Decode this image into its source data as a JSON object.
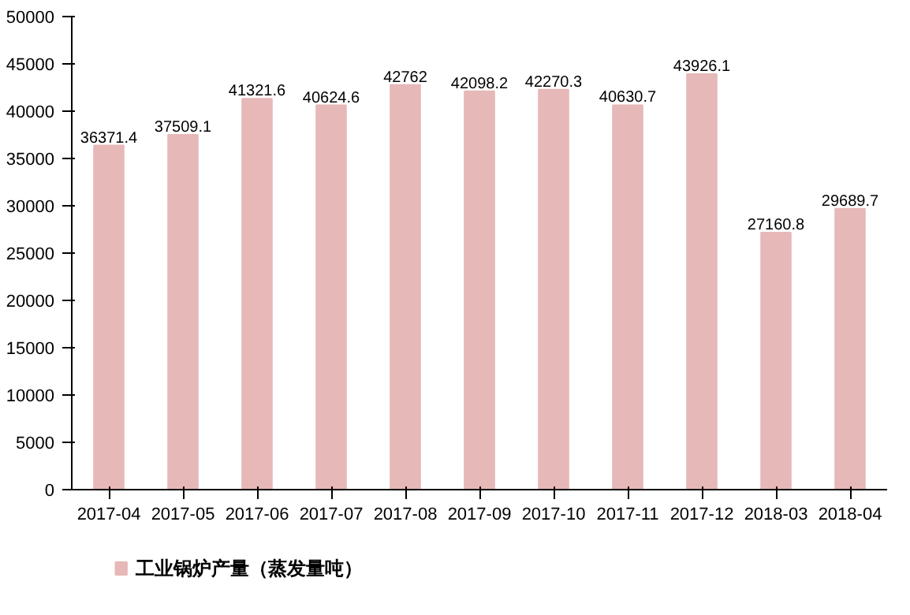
{
  "chart_data": {
    "type": "bar",
    "categories": [
      "2017-04",
      "2017-05",
      "2017-06",
      "2017-07",
      "2017-08",
      "2017-09",
      "2017-10",
      "2017-11",
      "2017-12",
      "2018-03",
      "2018-04"
    ],
    "series": [
      {
        "name": "工业锅炉产量（蒸发量吨）",
        "color": "#e6b8b7",
        "values": [
          36371.4,
          37509.1,
          41321.6,
          40624.6,
          42762,
          42098.2,
          42270.3,
          40630.7,
          43926.1,
          27160.8,
          29689.7
        ]
      }
    ],
    "ylim": [
      0,
      50000
    ],
    "yticks": [
      0,
      5000,
      10000,
      15000,
      20000,
      25000,
      30000,
      35000,
      40000,
      45000,
      50000
    ],
    "data_labels": true,
    "grid": false,
    "legend": "bottom left"
  }
}
